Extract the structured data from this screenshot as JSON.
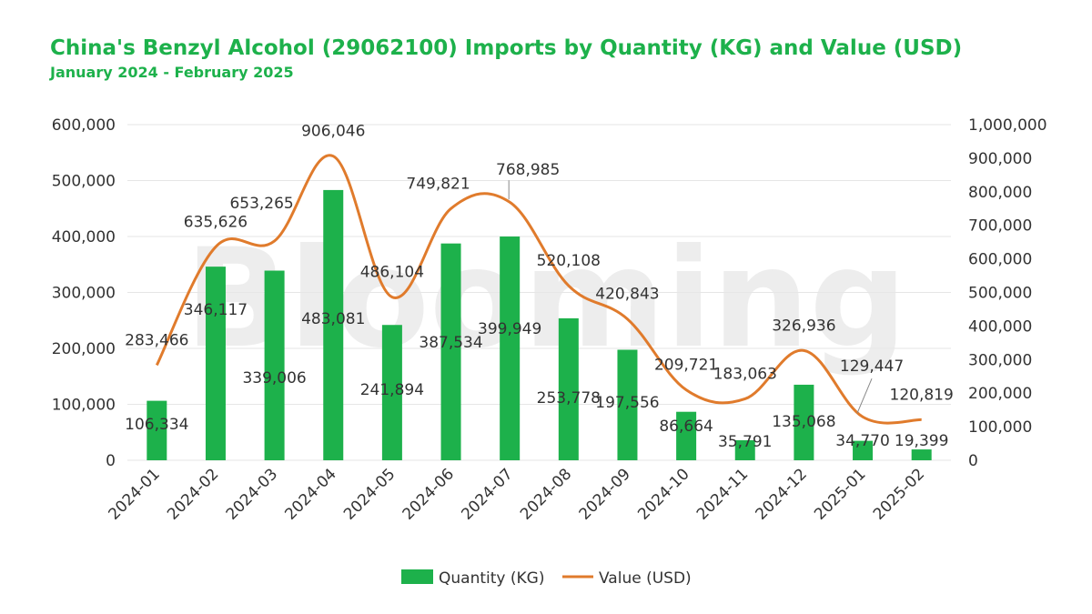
{
  "colors": {
    "title": "#1db14b",
    "bar": "#1db14b",
    "line": "#e07b2c",
    "grid": "#e6e6e6"
  },
  "watermark": "Blooming",
  "chart_data": {
    "type": "bar",
    "title": "China's Benzyl Alcohol (29062100) Imports by Quantity (KG) and Value (USD)",
    "subtitle": "January 2024 - February 2025",
    "categories": [
      "2024-01",
      "2024-02",
      "2024-03",
      "2024-04",
      "2024-05",
      "2024-06",
      "2024-07",
      "2024-08",
      "2024-09",
      "2024-10",
      "2024-11",
      "2024-12",
      "2025-01",
      "2025-02"
    ],
    "series": [
      {
        "name": "Quantity (KG)",
        "type": "bar",
        "axis": "left",
        "values": [
          106334,
          346117,
          339006,
          483081,
          241894,
          387534,
          399949,
          253778,
          197556,
          86664,
          35791,
          135068,
          34770,
          19399
        ],
        "labels": [
          "106,334",
          "346,117",
          "339,006",
          "483,081",
          "241,894",
          "387,534",
          "399,949",
          "253,778",
          "197,556",
          "86,664",
          "35,791",
          "135,068",
          "34,770",
          "19,399"
        ]
      },
      {
        "name": "Value (USD)",
        "type": "line",
        "axis": "right",
        "values": [
          283466,
          635626,
          653265,
          906046,
          486104,
          749821,
          768985,
          520108,
          420843,
          209721,
          183063,
          326936,
          129447,
          120819
        ],
        "labels": [
          "283,466",
          "635,626",
          "653,265",
          "906,046",
          "486,104",
          "749,821",
          "768,985",
          "520,108",
          "420,843",
          "209,721",
          "183,063",
          "326,936",
          "129,447",
          "120,819"
        ]
      }
    ],
    "y_left": {
      "range": [
        0,
        600000
      ],
      "ticks": [
        "0",
        "100,000",
        "200,000",
        "300,000",
        "400,000",
        "500,000",
        "600,000"
      ]
    },
    "y_right": {
      "range": [
        0,
        1000000
      ],
      "ticks": [
        "0",
        "100,000",
        "200,000",
        "300,000",
        "400,000",
        "500,000",
        "600,000",
        "700,000",
        "800,000",
        "900,000",
        "1,000,000"
      ]
    },
    "legend": [
      "Quantity (KG)",
      "Value (USD)"
    ],
    "legend_position": "bottom",
    "grid": true
  }
}
